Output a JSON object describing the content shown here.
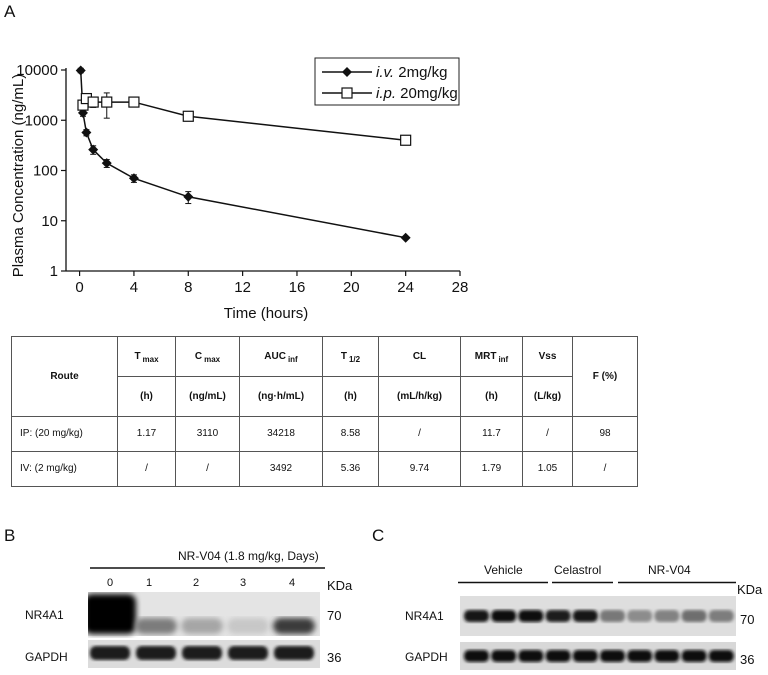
{
  "panels": {
    "a": "A",
    "b": "B",
    "c": "C"
  },
  "chart_data": {
    "type": "line",
    "xlabel": "Time (hours)",
    "ylabel": "Plasma Concentration (ng/mL)",
    "xlim": [
      -1,
      28
    ],
    "ylim": [
      1,
      10000
    ],
    "yscale": "log",
    "xticks": [
      "0",
      "4",
      "8",
      "12",
      "16",
      "20",
      "24",
      "28"
    ],
    "yticks": [
      "1",
      "10",
      "100",
      "1000",
      "10000"
    ],
    "legend_position": "top-right",
    "series": [
      {
        "name_prefix": "i.v.",
        "name_suffix": " 2mg/kg",
        "marker": "filled-diamond",
        "color": "#111111",
        "x": [
          0.083,
          0.25,
          0.5,
          1,
          2,
          4,
          8,
          24
        ],
        "y": [
          9800,
          1400,
          570,
          260,
          140,
          70,
          30,
          4.6
        ],
        "err": [
          1000,
          200,
          80,
          50,
          25,
          12,
          8,
          0
        ]
      },
      {
        "name_prefix": "i.p.",
        "name_suffix": " 20mg/kg",
        "marker": "open-square",
        "color": "#111111",
        "x": [
          0.25,
          0.5,
          1,
          2,
          4,
          8,
          24
        ],
        "y": [
          2000,
          2700,
          2300,
          2300,
          2300,
          1200,
          400
        ],
        "err": [
          300,
          600,
          500,
          1200,
          300,
          100,
          40
        ]
      }
    ]
  },
  "table": {
    "headers": [
      {
        "main": "Route"
      },
      {
        "main": "T",
        "sub": "max",
        "unit": "(h)"
      },
      {
        "main": "C",
        "sub": "max",
        "unit": "(ng/mL)"
      },
      {
        "main": "AUC",
        "sub": "inf",
        "unit": "(ng·h/mL)"
      },
      {
        "main": "T",
        "sub": "1/2",
        "unit": "(h)"
      },
      {
        "main": "CL",
        "unit": "(mL/h/kg)"
      },
      {
        "main": "MRT",
        "sub": "inf",
        "unit": "(h)"
      },
      {
        "main": "Vss",
        "unit": "(L/kg)"
      },
      {
        "main": "F (%)"
      }
    ],
    "rows": [
      [
        "IP: (20 mg/kg)",
        "1.17",
        "3110",
        "34218",
        "8.58",
        "/",
        "11.7",
        "/",
        "98"
      ],
      [
        "IV: (2 mg/kg)",
        "/",
        "/",
        "3492",
        "5.36",
        "9.74",
        "1.79",
        "1.05",
        "/"
      ]
    ]
  },
  "blot_b": {
    "title": "NR-V04 (1.8 mg/kg, Days)",
    "lanes": [
      "0",
      "1",
      "2",
      "3",
      "4"
    ],
    "kda": "KDa",
    "rows": [
      {
        "label": "NR4A1",
        "mw": "70",
        "intensity": [
          1.0,
          0.45,
          0.25,
          0.1,
          0.75
        ]
      },
      {
        "label": "GAPDH",
        "mw": "36",
        "intensity": [
          0.9,
          0.9,
          0.9,
          0.9,
          0.9
        ]
      }
    ]
  },
  "blot_c": {
    "groups": [
      "Vehicle",
      "Celastrol",
      "NR-V04"
    ],
    "kda": "KDa",
    "rows": [
      {
        "label": "NR4A1",
        "mw": "70"
      },
      {
        "label": "GAPDH",
        "mw": "36"
      }
    ]
  }
}
